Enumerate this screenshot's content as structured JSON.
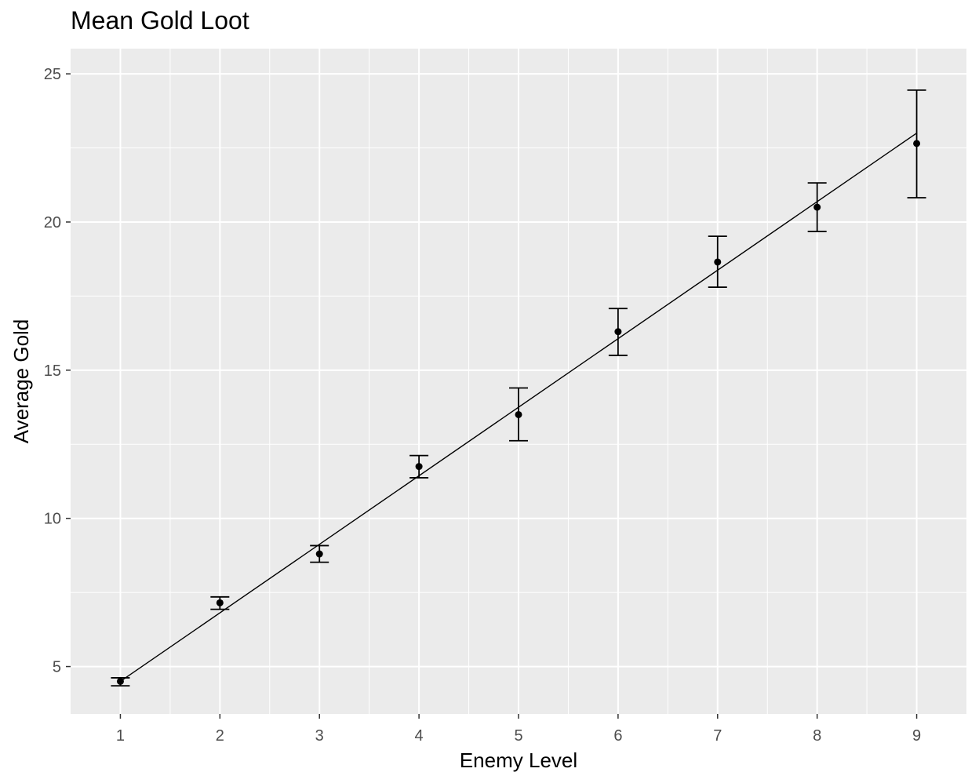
{
  "chart_data": {
    "type": "scatter",
    "title": "Mean Gold Loot",
    "xlabel": "Enemy Level",
    "ylabel": "Average Gold",
    "x": [
      1,
      2,
      3,
      4,
      5,
      6,
      7,
      8,
      9
    ],
    "y": [
      4.5,
      7.15,
      8.8,
      11.75,
      13.5,
      16.3,
      18.65,
      20.5,
      22.65
    ],
    "ymin": [
      4.35,
      6.93,
      8.52,
      11.37,
      12.62,
      15.5,
      17.8,
      19.68,
      20.82
    ],
    "ymax": [
      4.62,
      7.35,
      9.08,
      12.12,
      14.4,
      17.08,
      19.52,
      21.32,
      24.45
    ],
    "fit_line": {
      "x": [
        1,
        9
      ],
      "y": [
        4.5,
        23.0
      ]
    },
    "xlim": [
      0.5,
      9.5
    ],
    "ylim": [
      3.4,
      25.85
    ],
    "xticks": [
      1,
      2,
      3,
      4,
      5,
      6,
      7,
      8,
      9
    ],
    "yticks": [
      5,
      10,
      15,
      20,
      25
    ],
    "grid": true,
    "colors": {
      "panel": "#ebebeb",
      "grid": "#ffffff",
      "marks": "#000000",
      "tick_text": "#4d4d4d"
    }
  }
}
